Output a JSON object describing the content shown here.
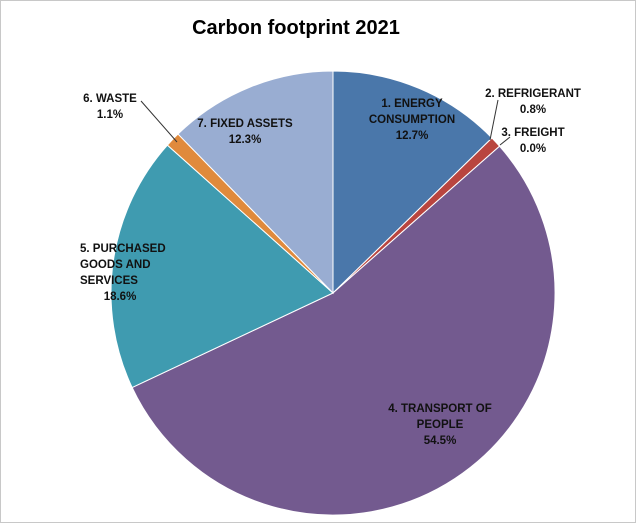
{
  "chart_data": {
    "type": "pie",
    "title": "Carbon footprint 2021",
    "slices": [
      {
        "label": [
          "1. ENERGY",
          "CONSUMPTION",
          "12.7%"
        ],
        "value": 12.7,
        "color": "#4a77aa"
      },
      {
        "label": [
          "2. REFRIGERANT",
          "0.8%"
        ],
        "value": 0.8,
        "color": "#b9453f"
      },
      {
        "label": [
          "3. FREIGHT",
          "0.0%"
        ],
        "value": 0.0,
        "color": "#8aa24c"
      },
      {
        "label": [
          "4. TRANSPORT OF",
          "PEOPLE",
          "54.5%"
        ],
        "value": 54.5,
        "color": "#735a8f"
      },
      {
        "label": [
          "5. PURCHASED",
          "GOODS AND",
          "SERVICES",
          "18.6%"
        ],
        "value": 18.6,
        "color": "#3f9bb0"
      },
      {
        "label": [
          "6. WASTE",
          "1.1%"
        ],
        "value": 1.1,
        "color": "#e08a3c"
      },
      {
        "label": [
          "7. FIXED ASSETS",
          "12.3%"
        ],
        "value": 12.3,
        "color": "#99add2"
      }
    ]
  }
}
